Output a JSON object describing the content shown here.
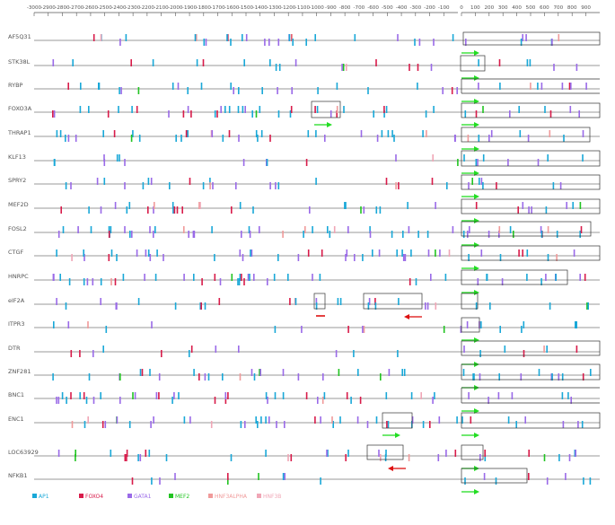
{
  "axis": {
    "neg_ticks": [
      -3000,
      -2900,
      -2800,
      -2700,
      -2600,
      -2500,
      -2400,
      -2300,
      -2200,
      -2100,
      -2000,
      -1900,
      -1800,
      -1700,
      -1600,
      -1500,
      -1400,
      -1300,
      -1200,
      -1100,
      -1000,
      -900,
      -800,
      -700,
      -600,
      -500,
      -400,
      -300,
      -200,
      -100
    ],
    "pos_ticks": [
      0,
      100,
      200,
      300,
      400,
      500,
      600,
      700,
      800,
      900
    ]
  },
  "genes": [
    {
      "name": "AF5Q31"
    },
    {
      "name": "STK38L"
    },
    {
      "name": "RYBP"
    },
    {
      "name": "FOXO3A"
    },
    {
      "name": "THRAP1"
    },
    {
      "name": "KLF13"
    },
    {
      "name": "SPRY2"
    },
    {
      "name": "MEF2D"
    },
    {
      "name": "FOSL2"
    },
    {
      "name": "CTGF"
    },
    {
      "name": "HNRPC"
    },
    {
      "name": "eIF2A"
    },
    {
      "name": "ITPR3"
    },
    {
      "name": "DTR"
    },
    {
      "name": "ZNF281"
    },
    {
      "name": "BNC1"
    },
    {
      "name": "ENC1"
    },
    {
      "name": "LOC63929"
    },
    {
      "name": "NFKB1"
    }
  ],
  "legend": [
    {
      "label": "AP1",
      "color": "#19a8d8"
    },
    {
      "label": "FOXO4",
      "color": "#d81b4a"
    },
    {
      "label": "GATA1",
      "color": "#9a6ae8"
    },
    {
      "label": "MEF2",
      "color": "#22c422"
    },
    {
      "label": "HNF3ALPHA",
      "color": "#f09a9a"
    },
    {
      "label": "HNF3B",
      "color": "#f0a6b6"
    }
  ],
  "colors": {
    "forward_arrow": "#22dd22",
    "reverse_arrow": "#dd1111",
    "axis": "#555555"
  }
}
